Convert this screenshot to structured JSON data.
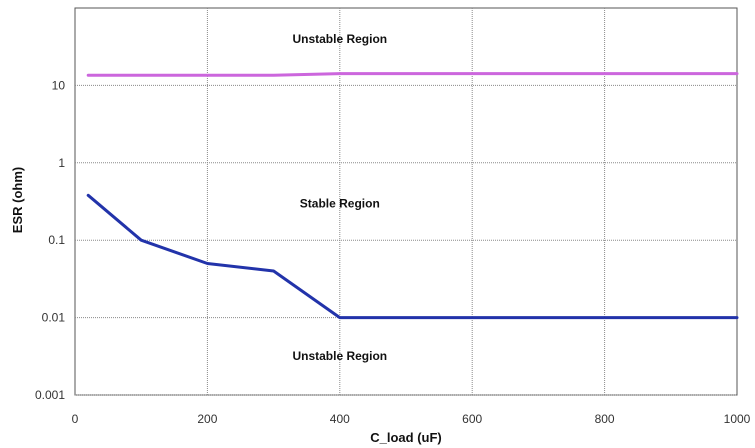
{
  "chart_data": {
    "type": "line",
    "title": "",
    "xlabel": "C_load (uF)",
    "ylabel": "ESR (ohm)",
    "x_ticks": [
      "0",
      "200",
      "400",
      "600",
      "800",
      "1000"
    ],
    "y_ticks": [
      "0.001",
      "0.01",
      "0.1",
      "1",
      "10"
    ],
    "xlim": [
      0,
      1000
    ],
    "ylim": [
      0.001,
      100
    ],
    "y_scale": "log",
    "grid": true,
    "legend": "none",
    "annotations": [
      {
        "text": "Unstable Region",
        "x": 400,
        "y": 40
      },
      {
        "text": "Stable Region",
        "x": 400,
        "y": 0.3
      },
      {
        "text": "Unstable Region",
        "x": 400,
        "y": 0.0032
      }
    ],
    "series": [
      {
        "color": "#cc66dd",
        "x": [
          20,
          100,
          200,
          300,
          400,
          500,
          600,
          700,
          800,
          900,
          1000
        ],
        "y": [
          13.5,
          13.5,
          13.5,
          13.5,
          14.2,
          14.2,
          14.2,
          14.2,
          14.2,
          14.2,
          14.2
        ]
      },
      {
        "color": "#2233aa",
        "x": [
          20,
          100,
          200,
          300,
          400,
          500,
          600,
          700,
          800,
          900,
          1000
        ],
        "y": [
          0.38,
          0.1,
          0.05,
          0.04,
          0.01,
          0.01,
          0.01,
          0.01,
          0.01,
          0.01,
          0.01
        ]
      }
    ]
  }
}
